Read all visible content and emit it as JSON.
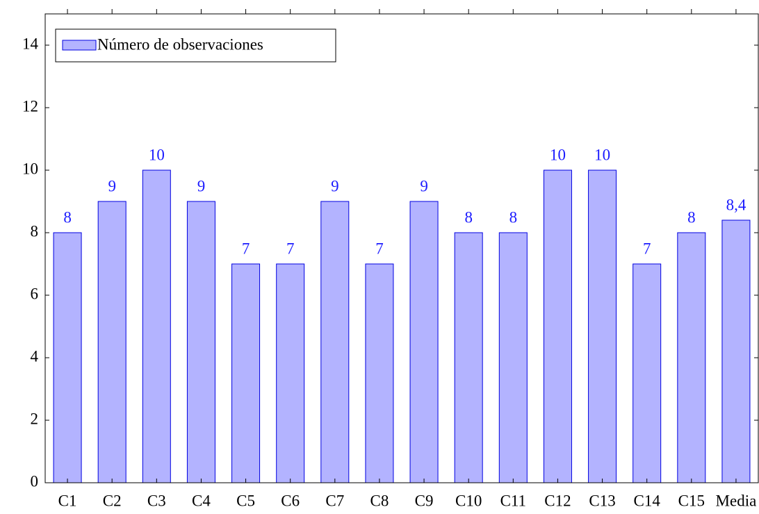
{
  "chart_data": {
    "type": "bar",
    "categories": [
      "C1",
      "C2",
      "C3",
      "C4",
      "C5",
      "C6",
      "C7",
      "C8",
      "C9",
      "C10",
      "C11",
      "C12",
      "C13",
      "C14",
      "C15",
      "Media"
    ],
    "series": [
      {
        "name": "Número de observaciones",
        "color": "#b3b3ff",
        "values": [
          8,
          9,
          10,
          9,
          7,
          7,
          9,
          7,
          9,
          8,
          8,
          10,
          10,
          7,
          8,
          8.4
        ],
        "value_labels": [
          "8",
          "9",
          "10",
          "9",
          "7",
          "7",
          "9",
          "7",
          "9",
          "8",
          "8",
          "10",
          "10",
          "7",
          "8",
          "8,4"
        ]
      }
    ],
    "ylim": [
      0,
      15
    ],
    "yticks": [
      0,
      2,
      4,
      6,
      8,
      10,
      12,
      14
    ],
    "legend": "upper left"
  }
}
